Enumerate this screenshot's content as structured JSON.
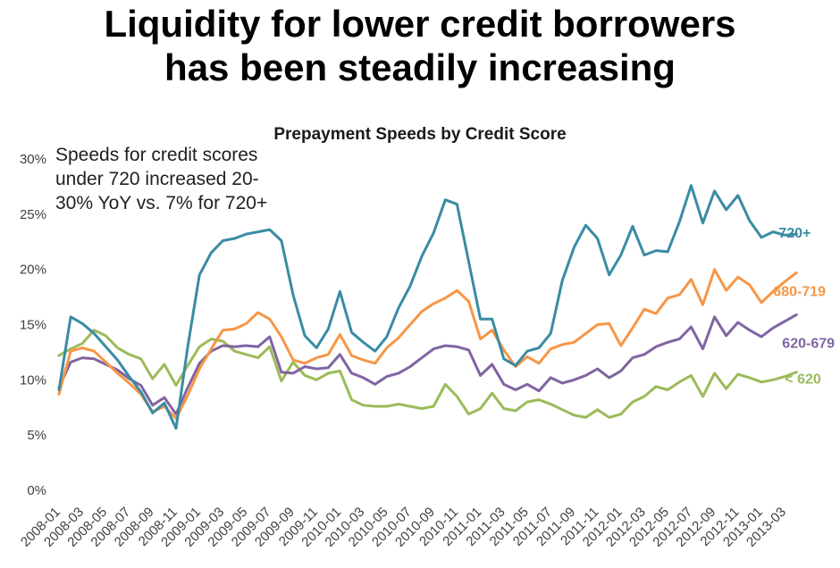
{
  "slide": {
    "title_line1": "Liquidity for lower credit borrowers",
    "title_line2": "has been steadily increasing"
  },
  "annotation": {
    "lines": [
      "Speeds for credit scores",
      "under 720 increased 20-",
      "30% YoY vs. 7% for 720+"
    ]
  },
  "colors": {
    "background": "#ffffff",
    "title_text": "#000000",
    "axis_text": "#3f3f3f",
    "teal": "#3a8ba4",
    "orange": "#f79646",
    "purple": "#8064a2",
    "green": "#9bbb59"
  },
  "chart_data": {
    "type": "line",
    "title": "Prepayment Speeds by Credit Score",
    "xlabel": "",
    "ylabel": "",
    "ylim": [
      0,
      30
    ],
    "grid": false,
    "legend_position": "end-of-line",
    "y_tick_values": [
      0,
      5,
      10,
      15,
      20,
      25,
      30
    ],
    "y_tick_labels": [
      "0%",
      "5%",
      "10%",
      "15%",
      "20%",
      "25%",
      "30%"
    ],
    "x": [
      "2008-01",
      "2008-02",
      "2008-03",
      "2008-04",
      "2008-05",
      "2008-06",
      "2008-07",
      "2008-08",
      "2008-09",
      "2008-10",
      "2008-11",
      "2008-12",
      "2009-01",
      "2009-02",
      "2009-03",
      "2009-04",
      "2009-05",
      "2009-06",
      "2009-07",
      "2009-08",
      "2009-09",
      "2009-10",
      "2009-11",
      "2009-12",
      "2010-01",
      "2010-02",
      "2010-03",
      "2010-04",
      "2010-05",
      "2010-06",
      "2010-07",
      "2010-08",
      "2010-09",
      "2010-10",
      "2010-11",
      "2010-12",
      "2011-01",
      "2011-02",
      "2011-03",
      "2011-04",
      "2011-05",
      "2011-06",
      "2011-07",
      "2011-08",
      "2011-09",
      "2011-10",
      "2011-11",
      "2011-12",
      "2012-01",
      "2012-02",
      "2012-03",
      "2012-04",
      "2012-05",
      "2012-06",
      "2012-07",
      "2012-08",
      "2012-09",
      "2012-10",
      "2012-11",
      "2012-12",
      "2013-01",
      "2013-02",
      "2013-03",
      "2013-04"
    ],
    "x_tick_every": 2,
    "series": [
      {
        "name": "720+",
        "color": "#3a8ba4",
        "values": [
          9.1,
          15.7,
          15.1,
          14.2,
          13.0,
          11.8,
          10.3,
          8.9,
          7.0,
          7.9,
          5.6,
          13.0,
          19.5,
          21.5,
          22.6,
          22.8,
          23.2,
          23.4,
          23.6,
          22.6,
          17.7,
          14.0,
          12.9,
          14.6,
          18.0,
          14.3,
          13.4,
          12.6,
          13.9,
          16.5,
          18.5,
          21.2,
          23.3,
          26.3,
          25.9,
          20.7,
          15.5,
          15.5,
          11.9,
          11.3,
          12.6,
          12.9,
          14.2,
          19.0,
          22.0,
          24.0,
          22.8,
          19.5,
          21.3,
          23.9,
          21.3,
          21.7,
          21.6,
          24.3,
          27.6,
          24.2,
          27.1,
          25.4,
          26.7,
          24.4,
          22.9,
          23.4,
          23.1,
          23.2
        ]
      },
      {
        "name": "680-719",
        "color": "#f79646",
        "values": [
          8.7,
          12.6,
          12.9,
          12.6,
          11.6,
          10.6,
          9.7,
          8.7,
          7.1,
          7.6,
          6.5,
          8.6,
          11.0,
          12.8,
          14.5,
          14.6,
          15.1,
          16.1,
          15.5,
          13.9,
          11.8,
          11.5,
          12.0,
          12.3,
          14.1,
          12.2,
          11.8,
          11.5,
          12.9,
          13.8,
          15.0,
          16.2,
          16.9,
          17.4,
          18.1,
          17.1,
          13.7,
          14.5,
          12.7,
          11.2,
          12.1,
          11.5,
          12.8,
          13.2,
          13.4,
          14.2,
          15.0,
          15.1,
          13.1,
          14.7,
          16.4,
          16.0,
          17.4,
          17.7,
          19.1,
          16.8,
          20.0,
          18.1,
          19.3,
          18.6,
          17.0,
          18.0,
          18.9,
          19.7
        ]
      },
      {
        "name": "620-679",
        "color": "#8064a2",
        "values": [
          9.3,
          11.6,
          12.0,
          11.9,
          11.4,
          10.9,
          10.1,
          9.5,
          7.7,
          8.4,
          6.9,
          9.3,
          11.5,
          12.6,
          13.1,
          13.0,
          13.1,
          13.0,
          13.9,
          10.7,
          10.6,
          11.2,
          11.0,
          11.1,
          12.3,
          10.6,
          10.2,
          9.6,
          10.3,
          10.6,
          11.2,
          12.0,
          12.8,
          13.1,
          13.0,
          12.7,
          10.4,
          11.4,
          9.6,
          9.1,
          9.6,
          9.0,
          10.2,
          9.7,
          10.0,
          10.4,
          11.0,
          10.2,
          10.8,
          12.0,
          12.3,
          13.0,
          13.4,
          13.7,
          14.8,
          12.8,
          15.7,
          14.0,
          15.2,
          14.5,
          13.9,
          14.7,
          15.3,
          15.9
        ]
      },
      {
        "name": "< 620",
        "color": "#9bbb59",
        "values": [
          12.2,
          12.8,
          13.3,
          14.5,
          14.0,
          12.9,
          12.3,
          11.9,
          10.1,
          11.4,
          9.5,
          11.3,
          13.0,
          13.7,
          13.5,
          12.6,
          12.3,
          12.0,
          13.0,
          9.9,
          11.6,
          10.4,
          10.0,
          10.6,
          10.8,
          8.2,
          7.7,
          7.6,
          7.6,
          7.8,
          7.6,
          7.4,
          7.6,
          9.6,
          8.5,
          6.9,
          7.4,
          8.8,
          7.4,
          7.2,
          8.0,
          8.2,
          7.8,
          7.3,
          6.8,
          6.6,
          7.3,
          6.6,
          6.9,
          8.0,
          8.5,
          9.4,
          9.1,
          9.8,
          10.4,
          8.5,
          10.6,
          9.2,
          10.5,
          10.2,
          9.8,
          10.0,
          10.3,
          10.7
        ]
      }
    ]
  }
}
